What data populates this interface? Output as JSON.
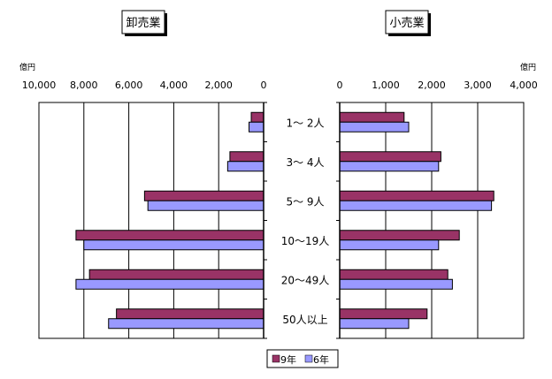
{
  "chart_data": [
    {
      "type": "bar",
      "orientation": "horizontal",
      "direction": "reversed",
      "title": "卸売業",
      "unit": "億円",
      "xlim": [
        0,
        10000
      ],
      "ticks": [
        10000,
        8000,
        6000,
        4000,
        2000,
        0
      ],
      "tick_labels": [
        "10,000",
        "8,000",
        "6,000",
        "4,000",
        "2,000",
        "0"
      ],
      "categories": [
        "1～ 2人",
        "3～ 4人",
        "5～ 9人",
        "10～19人",
        "20～49人",
        "50人以上"
      ],
      "series": [
        {
          "name": "9年",
          "color": "#993366",
          "values": [
            550,
            1500,
            5300,
            8350,
            7750,
            6550
          ]
        },
        {
          "name": "6年",
          "color": "#9999ff",
          "values": [
            650,
            1600,
            5150,
            8000,
            8350,
            6900
          ]
        }
      ],
      "grid": true
    },
    {
      "type": "bar",
      "orientation": "horizontal",
      "title": "小売業",
      "unit": "億円",
      "xlim": [
        0,
        4000
      ],
      "ticks": [
        0,
        1000,
        2000,
        3000,
        4000
      ],
      "tick_labels": [
        "0",
        "1,000",
        "2,000",
        "3,000",
        "4,000"
      ],
      "categories": [
        "1～ 2人",
        "3～ 4人",
        "5～ 9人",
        "10～19人",
        "20～49人",
        "50人以上"
      ],
      "series": [
        {
          "name": "9年",
          "color": "#993366",
          "values": [
            1400,
            2200,
            3350,
            2600,
            2350,
            1900
          ]
        },
        {
          "name": "6年",
          "color": "#9999ff",
          "values": [
            1500,
            2150,
            3300,
            2150,
            2450,
            1500
          ]
        }
      ],
      "grid": true
    }
  ],
  "legend": [
    {
      "label": "9年",
      "color": "#993366"
    },
    {
      "label": "6年",
      "color": "#9999ff"
    }
  ]
}
